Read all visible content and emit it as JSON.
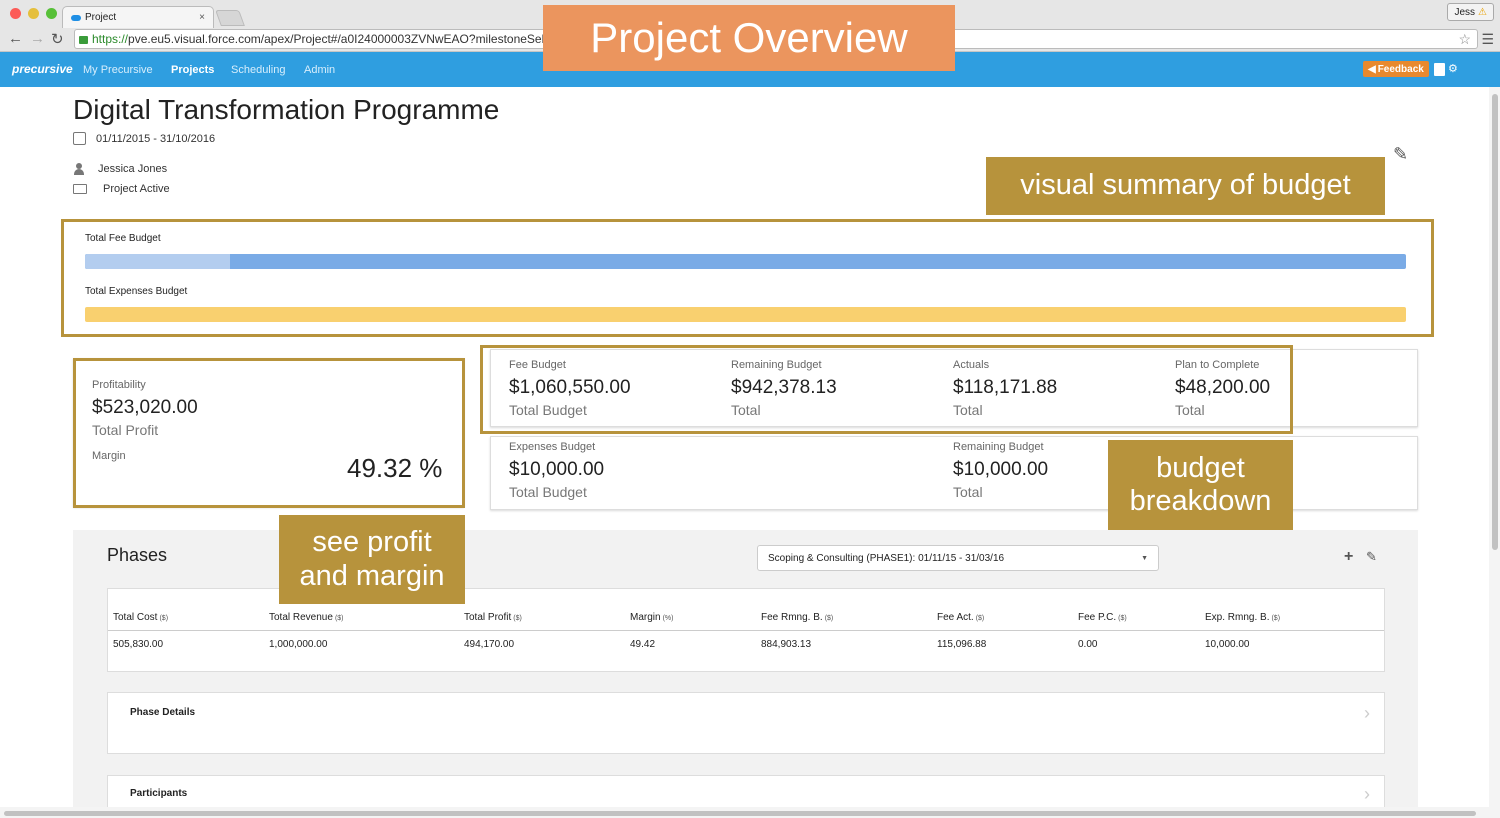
{
  "browser": {
    "tab_title": "Project",
    "tab_close": "×",
    "url_scheme": "https://",
    "url_rest": "pve.eu5.visual.force.com/apex/Project#/a0I24000003ZVNwEAO?milestoneSelec",
    "user_name": "Jess",
    "traffic_colors": [
      "#fc5b57",
      "#e5bf3c",
      "#57c038"
    ]
  },
  "appnav": {
    "logo": "precursive",
    "items": [
      "My Precursive",
      "Projects",
      "Scheduling",
      "Admin"
    ],
    "active": "Projects",
    "feedback_label": "Feedback",
    "color": "#2f9ee0"
  },
  "project": {
    "title": "Digital Transformation Programme",
    "dates": "01/11/2015 - 31/10/2016",
    "owner": "Jessica Jones",
    "status": "Project Active"
  },
  "budget_bars": {
    "fee_label": "Total Fee Budget",
    "fee_used_fraction": 0.11,
    "expenses_label": "Total Expenses Budget",
    "expenses_used_fraction": 0
  },
  "profitability": {
    "label": "Profitability",
    "amount": "$523,020.00",
    "amount_sub": "Total Profit",
    "margin_label": "Margin",
    "margin_value": "49.32 %"
  },
  "fee_stats": [
    {
      "label": "Fee Budget",
      "amount": "$1,060,550.00",
      "sub": "Total Budget"
    },
    {
      "label": "Remaining Budget",
      "amount": "$942,378.13",
      "sub": "Total"
    },
    {
      "label": "Actuals",
      "amount": "$118,171.88",
      "sub": "Total"
    },
    {
      "label": "Plan to Complete",
      "amount": "$48,200.00",
      "sub": "Total"
    }
  ],
  "expense_stats": [
    {
      "label": "Expenses Budget",
      "amount": "$10,000.00",
      "sub": "Total Budget"
    },
    {
      "label": "Remaining Budget",
      "amount": "$10,000.00",
      "sub": "Total"
    }
  ],
  "phases": {
    "title": "Phases",
    "selected": "Scoping & Consulting (PHASE1): 01/11/15 - 31/03/16",
    "columns": [
      {
        "name": "Total Cost",
        "unit": "($)"
      },
      {
        "name": "Total Revenue",
        "unit": "($)"
      },
      {
        "name": "Total Profit",
        "unit": "($)"
      },
      {
        "name": "Margin",
        "unit": "(%)"
      },
      {
        "name": "Fee Rmng. B.",
        "unit": "($)"
      },
      {
        "name": "Fee Act.",
        "unit": "($)"
      },
      {
        "name": "Fee P.C.",
        "unit": "($)"
      },
      {
        "name": "Exp. Rmng. B.",
        "unit": "($)"
      }
    ],
    "row": [
      "505,830.00",
      "1,000,000.00",
      "494,170.00",
      "49.42",
      "884,903.13",
      "115,096.88",
      "0.00",
      "10,000.00"
    ],
    "sections": [
      "Phase Details",
      "Participants"
    ]
  },
  "annotations": {
    "title": "Project Overview",
    "budget_summary": "visual summary of budget",
    "budget_breakdown": [
      "budget",
      "breakdown"
    ],
    "profit_margin": [
      "see profit",
      "and margin"
    ],
    "title_color": "#eb955e",
    "note_color": "#b7933c"
  }
}
